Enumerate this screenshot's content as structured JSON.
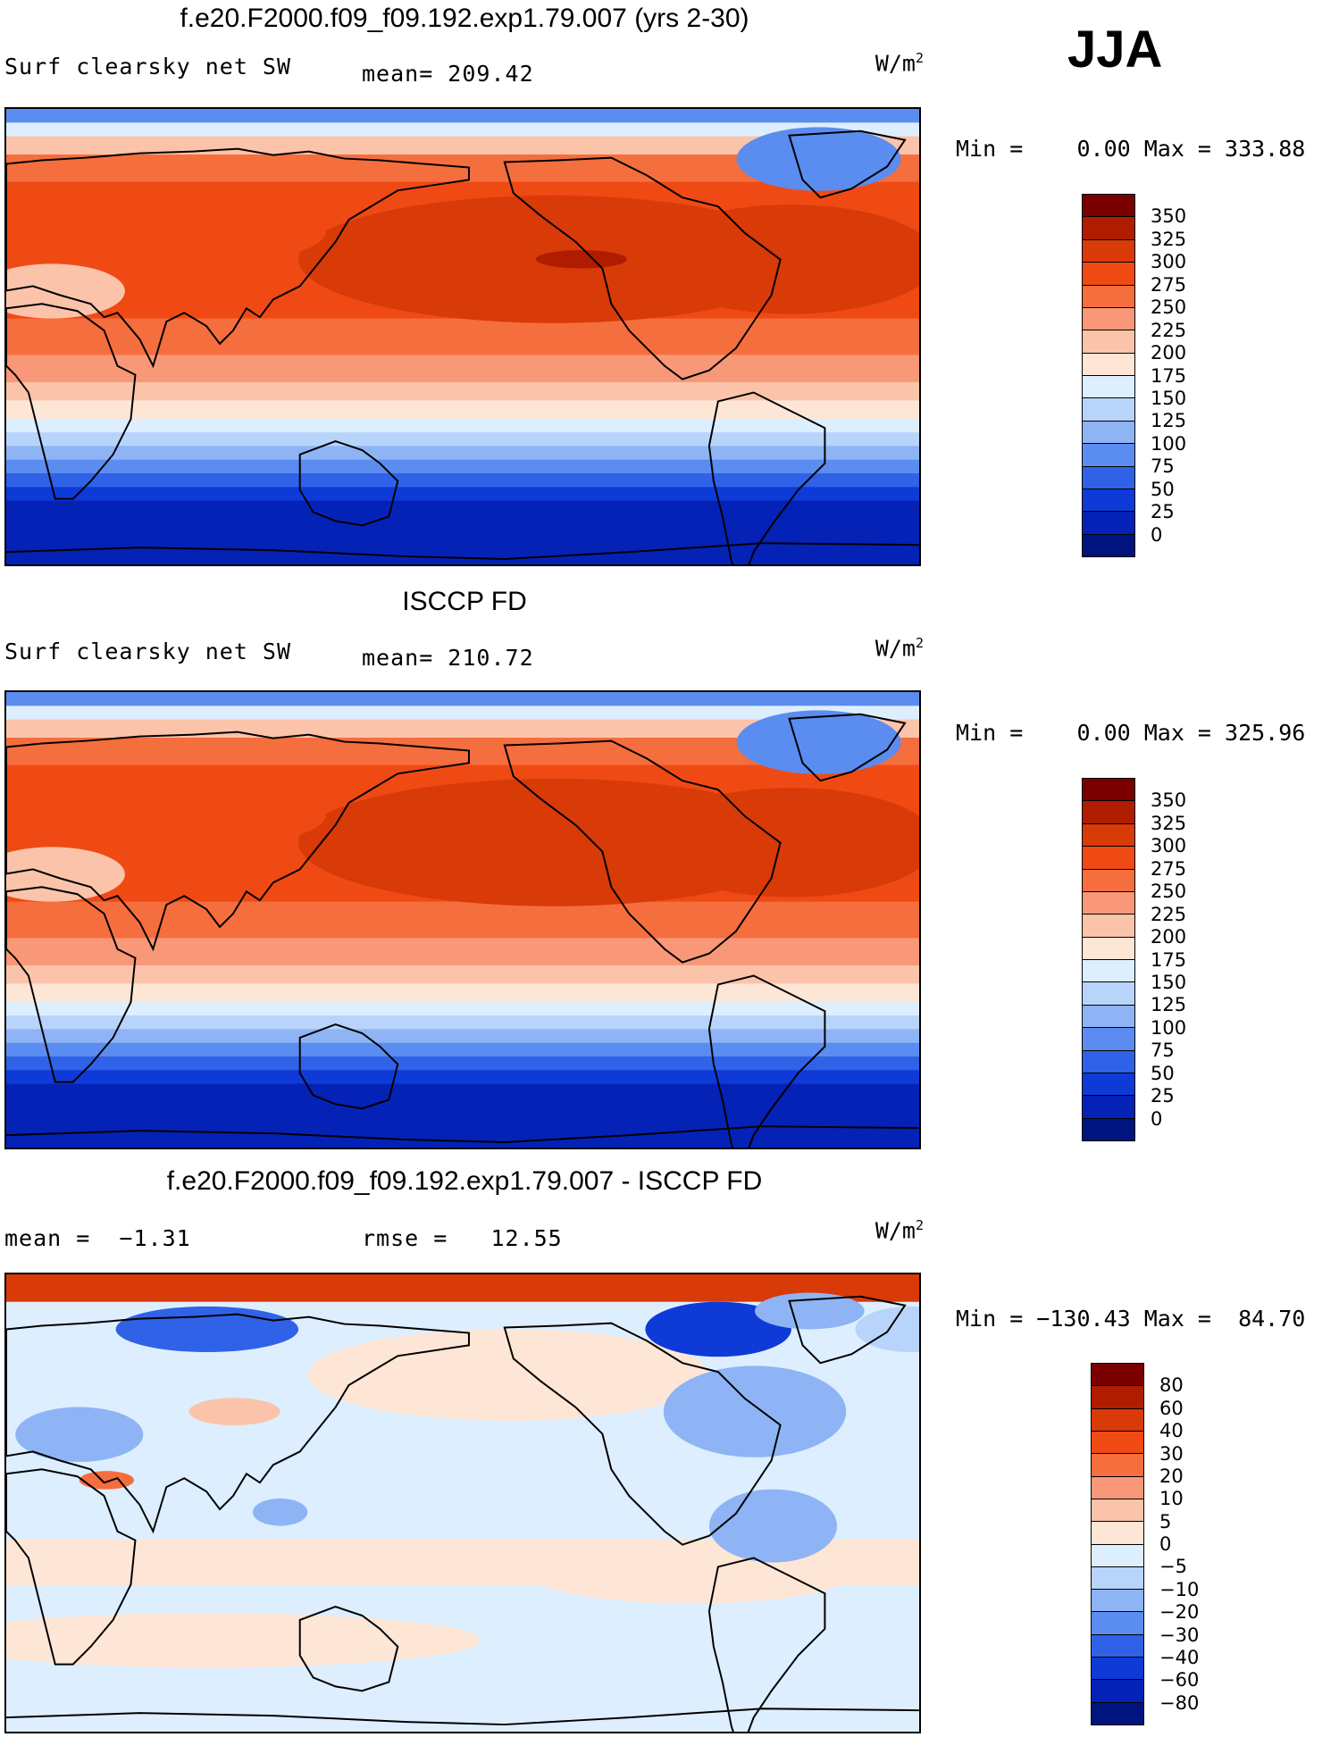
{
  "season": "JJA",
  "panels": [
    {
      "title": "f.e20.F2000.f09_f09.192.exp1.79.007 (yrs 2-30)",
      "left_label": "Surf clearsky net SW",
      "mid_label": "mean= 209.42",
      "units": "W/m",
      "units_exp": "2",
      "minmax": "Min =    0.00 Max = 333.88",
      "legend": [
        "350",
        "325",
        "300",
        "275",
        "250",
        "225",
        "200",
        "175",
        "150",
        "125",
        "100",
        "75",
        "50",
        "25",
        "0"
      ]
    },
    {
      "title": "ISCCP FD",
      "left_label": "Surf clearsky net SW",
      "mid_label": "mean= 210.72",
      "units": "W/m",
      "units_exp": "2",
      "minmax": "Min =    0.00 Max = 325.96",
      "legend": [
        "350",
        "325",
        "300",
        "275",
        "250",
        "225",
        "200",
        "175",
        "150",
        "125",
        "100",
        "75",
        "50",
        "25",
        "0"
      ]
    },
    {
      "title": "f.e20.F2000.f09_f09.192.exp1.79.007 - ISCCP FD",
      "left_label": "mean =  −1.31",
      "mid_label": "rmse =   12.55",
      "units": "W/m",
      "units_exp": "2",
      "minmax": "Min = −130.43 Max =  84.70",
      "legend": [
        "80",
        "60",
        "40",
        "30",
        "20",
        "10",
        "5",
        "0",
        "−5",
        "−10",
        "−20",
        "−30",
        "−40",
        "−60",
        "−80"
      ]
    }
  ],
  "colors": {
    "abs_scale": [
      "#7a0000",
      "#b01c00",
      "#d83a08",
      "#f04a14",
      "#f56e3e",
      "#f89878",
      "#fbc4aa",
      "#fde6d6",
      "#ddeefe",
      "#b9d4fb",
      "#8eb4f5",
      "#5b8cef",
      "#2f62e6",
      "#0e3ad8",
      "#0522b6",
      "#001480"
    ],
    "diff_scale": [
      "#7a0000",
      "#b01c00",
      "#d83a08",
      "#f04a14",
      "#f56e3e",
      "#f89878",
      "#fbc4aa",
      "#fde6d6",
      "#ddeefe",
      "#b9d4fb",
      "#8eb4f5",
      "#5b8cef",
      "#2f62e6",
      "#0e3ad8",
      "#0522b6",
      "#001480"
    ]
  }
}
